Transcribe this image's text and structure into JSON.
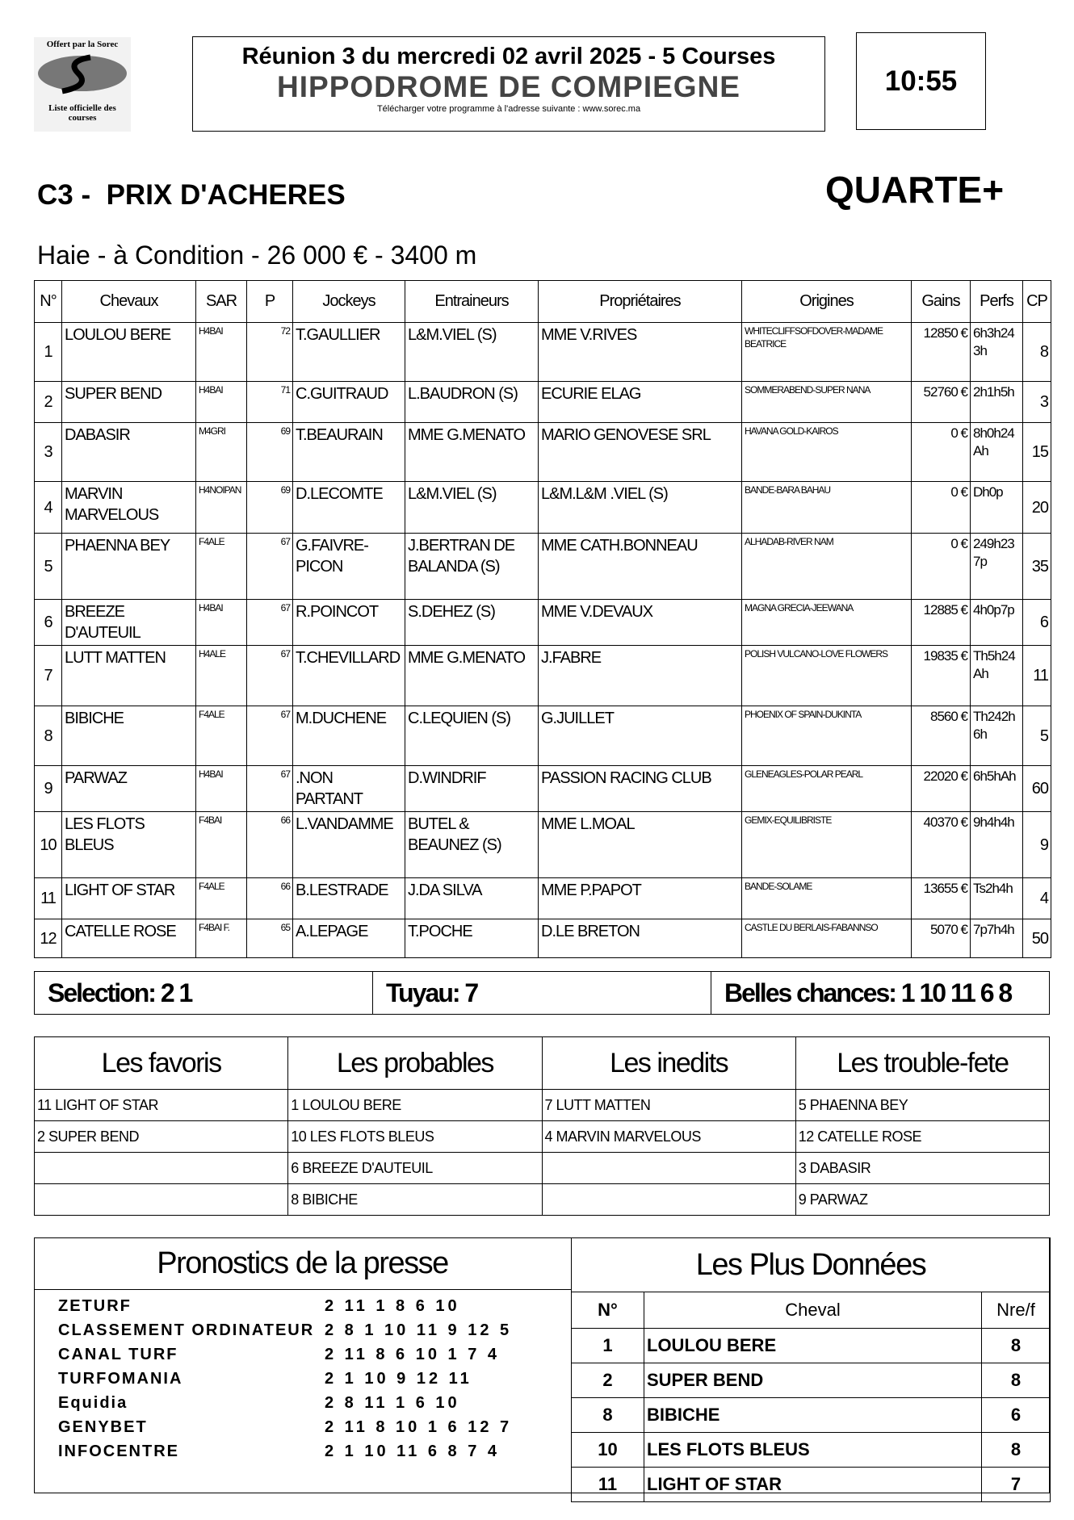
{
  "header": {
    "logo_top": "Offert par la Sorec",
    "logo_bottom": "Liste officielle des courses",
    "title": "Réunion 3 du mercredi 02 avril 2025 - 5 Courses",
    "hippodrome": "HIPPODROME DE COMPIEGNE",
    "download": "Télécharger votre programme à l'adresse suivante : www.sorec.ma",
    "time": "10:55"
  },
  "race": {
    "name": "C3 -  PRIX D'ACHERES",
    "bet": "QUARTE+",
    "conditions": "Haie - à Condition - 26 000 € - 3400 m"
  },
  "table": {
    "columns": [
      "N°",
      "Chevaux",
      "SAR",
      "P",
      "Jockeys",
      "Entraineurs",
      "Propriétaires",
      "Origines",
      "Gains",
      "Perfs",
      "CP"
    ],
    "rows": [
      [
        "1",
        "LOULOU BERE",
        "H4BAI",
        "72",
        "T.GAULLIER",
        "L&M.VIEL (S)",
        "MME V.RIVES",
        "WHITECLIFFSOFDOVER-MADAME BEATRICE",
        "12850 €",
        "6h3h243h",
        "8"
      ],
      [
        "2",
        "SUPER BEND",
        "H4BAI",
        "71",
        "C.GUITRAUD",
        "L.BAUDRON (S)",
        "ECURIE ELAG",
        "SOMMERABEND-SUPER NANA",
        "52760 €",
        "2h1h5h",
        "3"
      ],
      [
        "3",
        "DABASIR",
        "M4GRI",
        "69",
        "T.BEAURAIN",
        "MME G.MENATO",
        "MARIO GENOVESE SRL",
        "HAVANA GOLD-KAIROS",
        "0 €",
        "8h0h24Ah",
        "15"
      ],
      [
        "4",
        "MARVIN MARVELOUS",
        "H4NOIPAN",
        "69",
        "D.LECOMTE",
        "L&M.VIEL (S)",
        "L&M.L&M .VIEL (S)",
        "BANDE-BARA BAHAU",
        "0 €",
        "Dh0p",
        "20"
      ],
      [
        "5",
        "PHAENNA BEY",
        "F4ALE",
        "67",
        "G.FAIVRE-PICON",
        "J.BERTRAN DE BALANDA (S)",
        "MME CATH.BONNEAU",
        "ALHADAB-RIVER NAM",
        "0 €",
        "249h237p",
        "35"
      ],
      [
        "6",
        "BREEZE D'AUTEUIL",
        "H4BAI",
        "67",
        "R.POINCOT",
        "S.DEHEZ (S)",
        "MME V.DEVAUX",
        "MAGNA GRECIA-JEEWANA",
        "12885 €",
        "4h0p7p",
        "6"
      ],
      [
        "7",
        "LUTT MATTEN",
        "H4ALE",
        "67",
        "T.CHEVILLARD",
        "MME G.MENATO",
        "J.FABRE",
        "POLISH VULCANO-LOVE FLOWERS",
        "19835 €",
        "Th5h24Ah",
        "11"
      ],
      [
        "8",
        "BIBICHE",
        "F4ALE",
        "67",
        "M.DUCHENE",
        "C.LEQUIEN (S)",
        "G.JUILLET",
        "PHOENIX OF SPAIN-DUKINTA",
        "8560 €",
        "Th242h6h",
        "5"
      ],
      [
        "9",
        "PARWAZ",
        "H4BAI",
        "67",
        ".NON PARTANT",
        "D.WINDRIF",
        "PASSION RACING CLUB",
        "GLENEAGLES-POLAR PEARL",
        "22020 €",
        "6h5hAh",
        "60"
      ],
      [
        "10",
        "LES FLOTS BLEUS",
        "F4BAI",
        "66",
        "L.VANDAMME",
        "BUTEL & BEAUNEZ (S)",
        "MME L.MOAL",
        "GEMIX-EQUILIBRISTE",
        "40370 €",
        "9h4h4h",
        "9"
      ],
      [
        "11",
        "LIGHT OF STAR",
        "F4ALE",
        "66",
        "B.LESTRADE",
        "J.DA SILVA",
        "MME P.PAPOT",
        "BANDE-SOLAME",
        "13655 €",
        "Ts2h4h",
        "4"
      ],
      [
        "12",
        "CATELLE ROSE",
        "F4BAI F.",
        "65",
        "A.LEPAGE",
        "T.POCHE",
        "D.LE BRETON",
        "CASTLE DU BERLAIS-FABANNSO",
        "5070 €",
        "7p7h4h",
        "50"
      ]
    ]
  },
  "selection": [
    "Selection: 2 1",
    "Tuyau: 7",
    "Belles chances: 1 10 11 6 8"
  ],
  "groups": [
    {
      "title": "Les favoris",
      "items": [
        "11 LIGHT OF STAR",
        "2 SUPER BEND"
      ]
    },
    {
      "title": "Les probables",
      "items": [
        "1 LOULOU BERE",
        "10 LES FLOTS BLEUS",
        "6 BREEZE D'AUTEUIL",
        "8 BIBICHE"
      ]
    },
    {
      "title": "Les inedits",
      "items": [
        "7 LUTT MATTEN",
        "4 MARVIN MARVELOUS"
      ]
    },
    {
      "title": "Les trouble-fete",
      "items": [
        "5 PHAENNA BEY",
        "12 CATELLE ROSE",
        "3 DABASIR",
        "9 PARWAZ"
      ]
    }
  ],
  "press": {
    "title": "Pronostics de la presse",
    "items": [
      {
        "source": "ZETURF",
        "picks": "2 11 1 8 6 10"
      },
      {
        "source": "CLASSEMENT ORDINATEUR",
        "picks": "2 8 1 10 11 9 12 5"
      },
      {
        "source": "CANAL TURF",
        "picks": "2 11 8 6 10 1 7 4"
      },
      {
        "source": "TURFOMANIA",
        "picks": "2 1 10 9 12 11"
      },
      {
        "source": "Equidia",
        "picks": "2 8 11 1 6 10"
      },
      {
        "source": "GENYBET",
        "picks": "2 11 8 10 1 6 12 7"
      },
      {
        "source": "INFOCENTRE",
        "picks": "2 1 10 11 6 8 7 4"
      }
    ]
  },
  "plus": {
    "title": "Les Plus Données",
    "columns": [
      "N°",
      "Cheval",
      "Nre/f"
    ],
    "rows": [
      [
        "1",
        "LOULOU BERE",
        "8"
      ],
      [
        "2",
        "SUPER BEND",
        "8"
      ],
      [
        "8",
        "BIBICHE",
        "6"
      ],
      [
        "10",
        "LES FLOTS BLEUS",
        "8"
      ],
      [
        "11",
        "LIGHT OF STAR",
        "7"
      ]
    ]
  }
}
